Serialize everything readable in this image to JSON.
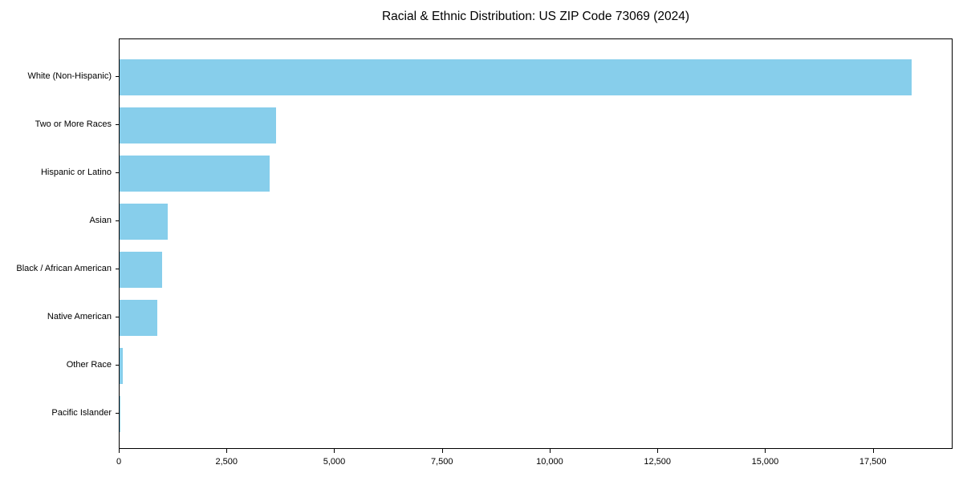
{
  "chart_data": {
    "type": "bar",
    "orientation": "horizontal",
    "title": "Racial & Ethnic Distribution: US ZIP Code 73069 (2024)",
    "categories": [
      "White (Non-Hispanic)",
      "Two or More Races",
      "Hispanic or Latino",
      "Asian",
      "Black / African American",
      "Native American",
      "Other Race",
      "Pacific Islander"
    ],
    "values": [
      18380,
      3630,
      3490,
      1120,
      980,
      870,
      80,
      10
    ],
    "xlabel": "",
    "ylabel": "",
    "xlim": [
      0,
      19350
    ],
    "xticks": [
      0,
      2500,
      5000,
      7500,
      10000,
      12500,
      15000,
      17500
    ],
    "xtick_labels": [
      "0",
      "2,500",
      "5,000",
      "7,500",
      "10,000",
      "12,500",
      "15,000",
      "17,500"
    ],
    "bar_color": "#87CEEB",
    "text_color": "#000000",
    "spine_color": "#000000",
    "background": "#ffffff",
    "grid": false,
    "legend": null
  }
}
